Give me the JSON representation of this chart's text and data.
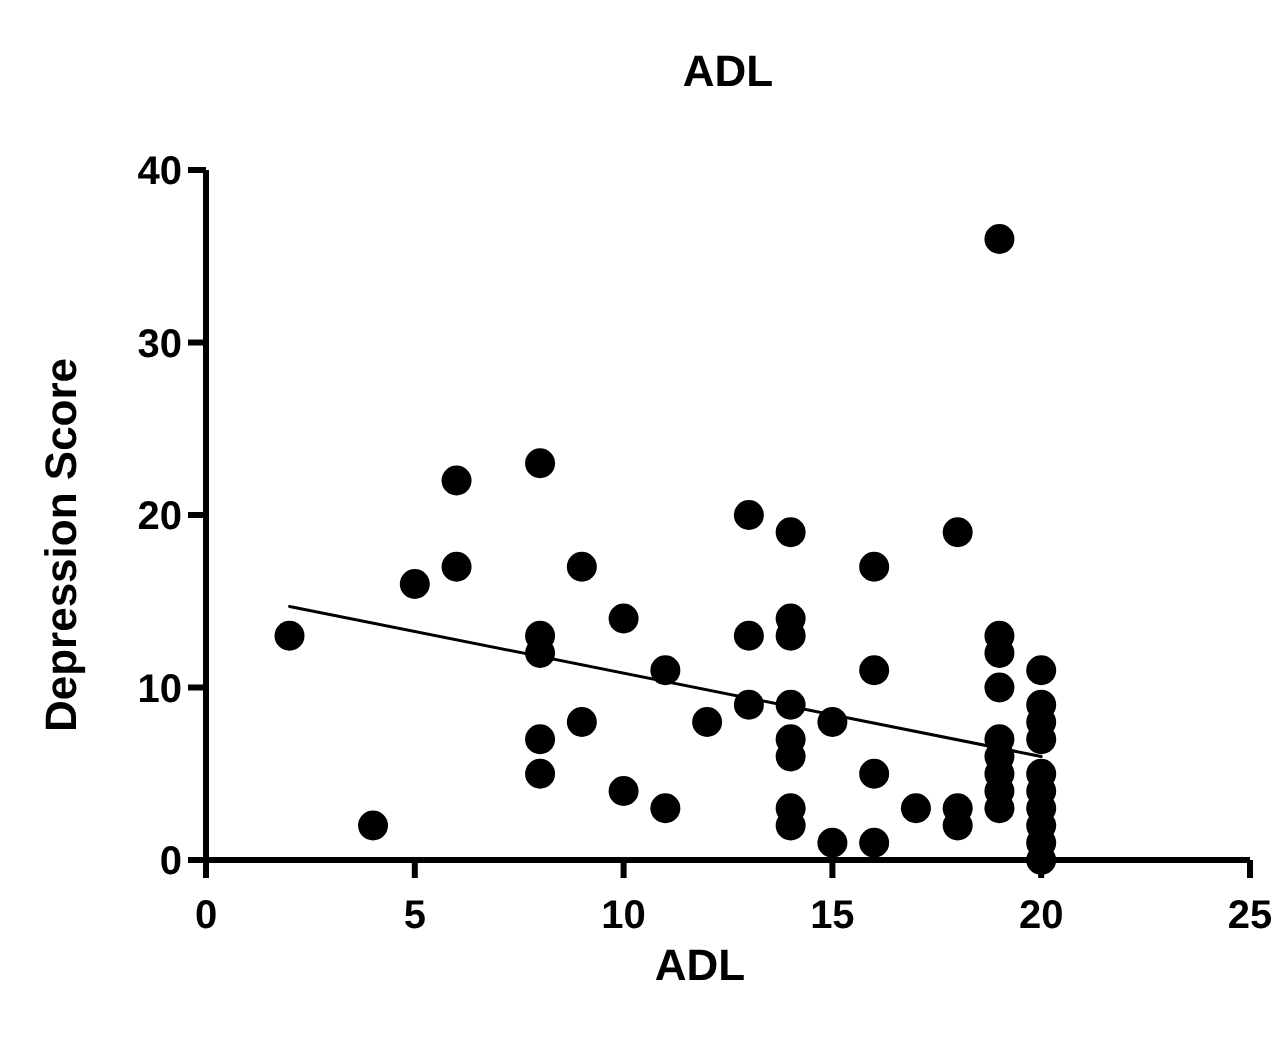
{
  "chart_data": {
    "type": "scatter",
    "title": "ADL",
    "xlabel": "ADL",
    "ylabel": "Depression Score",
    "xlim": [
      0,
      25
    ],
    "xticks": [
      0,
      5,
      10,
      15,
      20,
      25
    ],
    "ylim": [
      0,
      40
    ],
    "yticks": [
      0,
      10,
      20,
      30,
      40
    ],
    "grid": false,
    "marker": "circle",
    "series": [
      {
        "color": "#000000",
        "x": [
          2,
          4,
          5,
          6,
          6,
          8,
          8,
          8,
          8,
          8,
          9,
          9,
          10,
          10,
          11,
          11,
          12,
          13,
          13,
          13,
          14,
          14,
          14,
          14,
          14,
          14,
          14,
          14,
          15,
          15,
          16,
          16,
          16,
          16,
          17,
          18,
          18,
          18,
          19,
          19,
          19,
          19,
          19,
          19,
          19,
          19,
          19,
          20,
          20,
          20,
          20,
          20,
          20,
          20,
          20,
          20,
          20
        ],
        "values": [
          13,
          2,
          16,
          22,
          17,
          23,
          13,
          12,
          7,
          5,
          17,
          8,
          14,
          4,
          11,
          3,
          8,
          20,
          13,
          9,
          19,
          14,
          13,
          9,
          7,
          6,
          3,
          2,
          8,
          1,
          17,
          11,
          5,
          1,
          3,
          19,
          3,
          2,
          36,
          13,
          12,
          10,
          7,
          6,
          5,
          4,
          3,
          11,
          9,
          8,
          7,
          5,
          4,
          3,
          2,
          1,
          0
        ]
      },
      {
        "type": "line",
        "color": "#000000",
        "x": [
          2,
          20
        ],
        "values": [
          14.7,
          6.0
        ],
        "marker": "none",
        "line_style": "solid"
      }
    ]
  }
}
